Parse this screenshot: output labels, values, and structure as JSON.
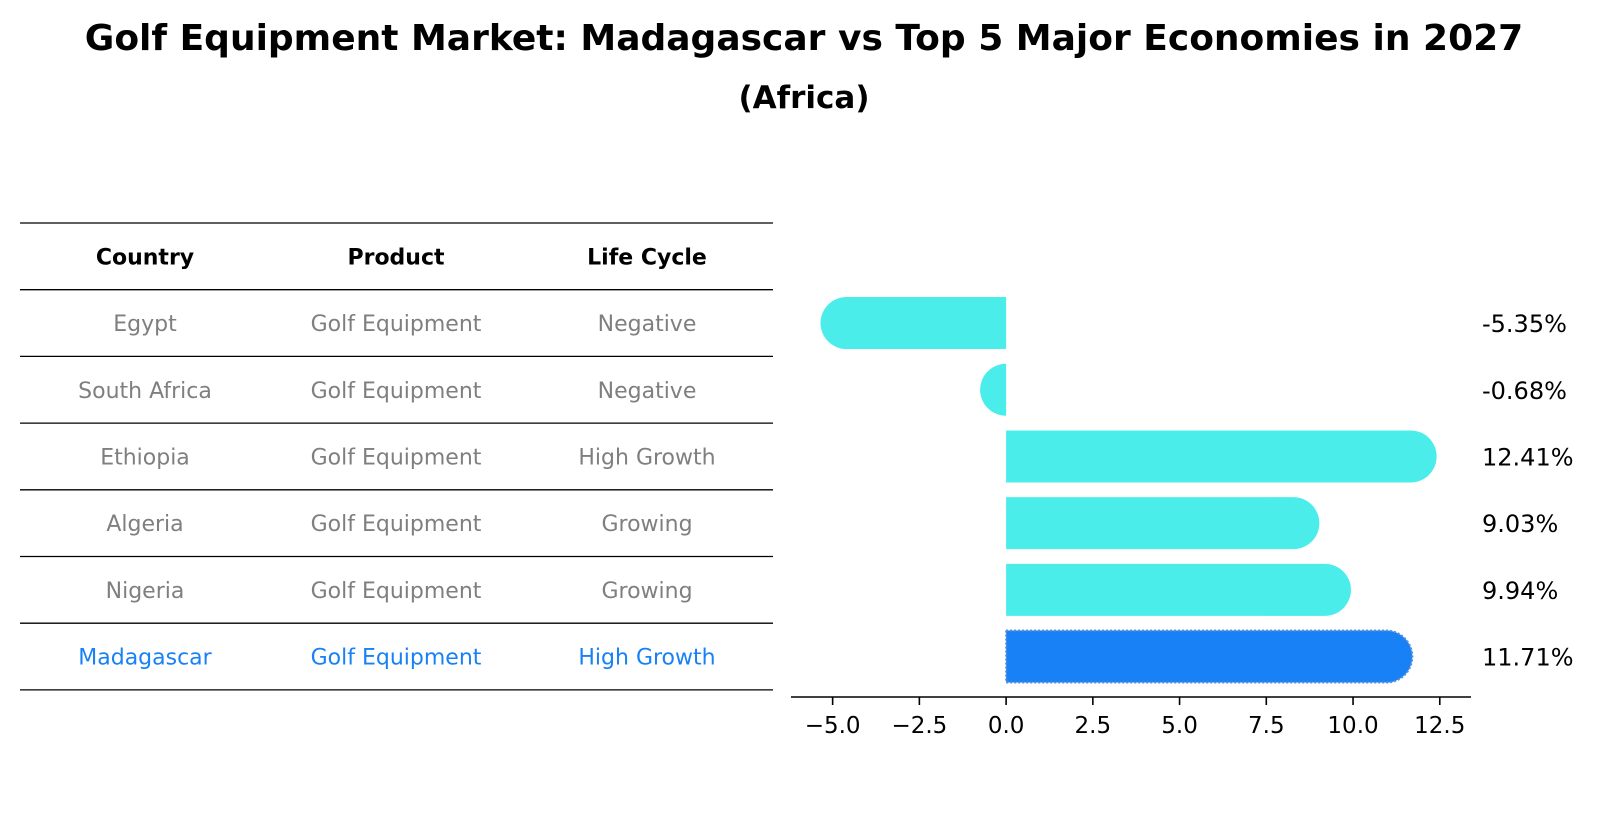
{
  "header": {
    "title": "Golf Equipment Market: Madagascar vs Top 5 Major Economies in 2027",
    "subtitle": "(Africa)"
  },
  "table": {
    "columns": [
      "Country",
      "Product",
      "Life Cycle"
    ],
    "rows": [
      {
        "country": "Egypt",
        "product": "Golf Equipment",
        "life_cycle": "Negative",
        "highlight": false
      },
      {
        "country": "South Africa",
        "product": "Golf Equipment",
        "life_cycle": "Negative",
        "highlight": false
      },
      {
        "country": "Ethiopia",
        "product": "Golf Equipment",
        "life_cycle": "High Growth",
        "highlight": false
      },
      {
        "country": "Algeria",
        "product": "Golf Equipment",
        "life_cycle": "Growing",
        "highlight": false
      },
      {
        "country": "Nigeria",
        "product": "Golf Equipment",
        "life_cycle": "Growing",
        "highlight": false
      },
      {
        "country": "Madagascar",
        "product": "Golf Equipment",
        "life_cycle": "High Growth",
        "highlight": true
      }
    ]
  },
  "colors": {
    "bar": "#4BEDEB",
    "highlight_bar": "#1781F5",
    "text_muted": "#7F7F7F",
    "text_highlight": "#1781F5",
    "axis": "#000000"
  },
  "chart_data": {
    "type": "bar",
    "orientation": "horizontal",
    "title": "Golf Equipment Market: Madagascar vs Top 5 Major Economies in 2027",
    "subtitle": "(Africa)",
    "categories": [
      "Egypt",
      "South Africa",
      "Ethiopia",
      "Algeria",
      "Nigeria",
      "Madagascar"
    ],
    "values": [
      -5.35,
      -0.68,
      12.41,
      9.03,
      9.94,
      11.71
    ],
    "value_labels": [
      "-5.35%",
      "-0.68%",
      "12.41%",
      "9.03%",
      "9.94%",
      "11.71%"
    ],
    "highlight": "Madagascar",
    "xlim": [
      -6.2,
      13.4
    ],
    "xticks": [
      -5.0,
      -2.5,
      0.0,
      2.5,
      5.0,
      7.5,
      10.0,
      12.5
    ],
    "xtick_labels": [
      "−5.0",
      "−2.5",
      "0.0",
      "2.5",
      "5.0",
      "7.5",
      "10.0",
      "12.5"
    ],
    "xlabel": "",
    "ylabel": "",
    "grid": false
  }
}
